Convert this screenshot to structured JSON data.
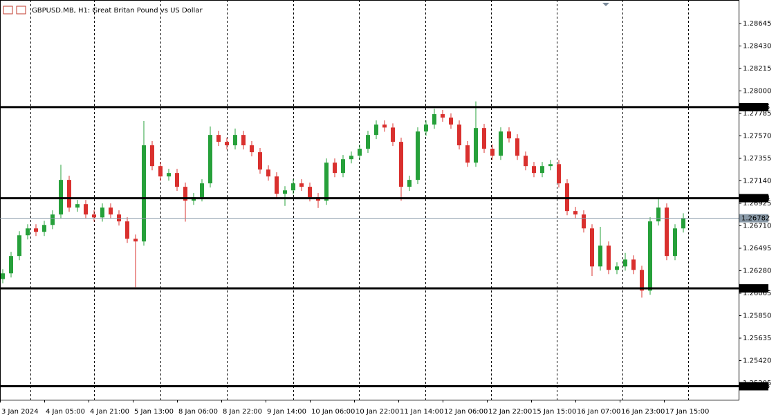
{
  "chart_data": {
    "type": "candlestick",
    "title": "GBPUSD.MB, H1:  Great Britan Pound vs US Dollar",
    "bull_color": "#26a03a",
    "bear_color": "#d9302e",
    "x": [
      1,
      4,
      7,
      10,
      13,
      16,
      19,
      22,
      25,
      28,
      31,
      34,
      37,
      40,
      43,
      46,
      49,
      52,
      55,
      58,
      61,
      64,
      67,
      70,
      73,
      76,
      79,
      82,
      85,
      88,
      91,
      94,
      97,
      100,
      103,
      106,
      109,
      112,
      115,
      118,
      121,
      124,
      127,
      130,
      133,
      136,
      139,
      142,
      145,
      148,
      151,
      154,
      157,
      160,
      163,
      166,
      169,
      172,
      175,
      178,
      181,
      184,
      187,
      190,
      193,
      196,
      199,
      202,
      205,
      208,
      211,
      214,
      217,
      220,
      223,
      226,
      229,
      232,
      235,
      238,
      241,
      244,
      247
    ],
    "open": [
      1.262,
      1.26255,
      1.26421,
      1.26619,
      1.26685,
      1.26652,
      1.26718,
      1.26818,
      1.27149,
      1.26884,
      1.26917,
      1.26818,
      1.2679,
      1.26884,
      1.26818,
      1.26752,
      1.26586,
      1.2656,
      1.2748,
      1.27281,
      1.27182,
      1.27215,
      1.27083,
      1.2695,
      1.26983,
      1.27116,
      1.27579,
      1.27513,
      1.2748,
      1.27579,
      1.2748,
      1.27414,
      1.27248,
      1.27182,
      1.27016,
      1.27049,
      1.27116,
      1.27083,
      1.26983,
      1.2695,
      1.27314,
      1.27215,
      1.27347,
      1.2738,
      1.27447,
      1.27579,
      1.27678,
      1.2765,
      1.27513,
      1.27083,
      1.27149,
      1.27612,
      1.27678,
      1.27778,
      1.27745,
      1.27678,
      1.2748,
      1.27314,
      1.27645,
      1.27447,
      1.2738,
      1.27612,
      1.27546,
      1.2738,
      1.27281,
      1.27215,
      1.27281,
      1.273,
      1.27116,
      1.26851,
      1.26818,
      1.26685,
      1.26321,
      1.2652,
      1.26288,
      1.26321,
      1.26387,
      1.26288,
      1.2609,
      1.26752,
      1.26884,
      1.26421,
      1.26685
    ],
    "high": [
      1.26295,
      1.26461,
      1.26659,
      1.26725,
      1.26725,
      1.26758,
      1.26858,
      1.27294,
      1.27189,
      1.26957,
      1.26957,
      1.26858,
      1.26924,
      1.26924,
      1.26858,
      1.26792,
      1.26626,
      1.27712,
      1.2752,
      1.27321,
      1.27255,
      1.27255,
      1.27123,
      1.27023,
      1.27156,
      1.2766,
      1.27619,
      1.27553,
      1.2764,
      1.27619,
      1.2752,
      1.27454,
      1.27288,
      1.27222,
      1.27089,
      1.27156,
      1.27156,
      1.27123,
      1.27023,
      1.27354,
      1.27354,
      1.27387,
      1.2742,
      1.27487,
      1.27619,
      1.27718,
      1.27718,
      1.2769,
      1.27553,
      1.27189,
      1.27652,
      1.27718,
      1.2783,
      1.27818,
      1.27785,
      1.27718,
      1.2752,
      1.279,
      1.27685,
      1.27487,
      1.27652,
      1.27652,
      1.27586,
      1.2742,
      1.27321,
      1.27321,
      1.2734,
      1.2734,
      1.27156,
      1.26891,
      1.26858,
      1.26725,
      1.267,
      1.2656,
      1.26361,
      1.2645,
      1.26427,
      1.26328,
      1.26792,
      1.26974,
      1.26924,
      1.26725,
      1.2683
    ],
    "low": [
      1.2616,
      1.26215,
      1.26381,
      1.26579,
      1.26612,
      1.26612,
      1.26678,
      1.26778,
      1.26844,
      1.26844,
      1.26778,
      1.2675,
      1.2675,
      1.26778,
      1.26712,
      1.26546,
      1.26123,
      1.2652,
      1.27241,
      1.27142,
      1.27142,
      1.27043,
      1.2675,
      1.2691,
      1.26943,
      1.27076,
      1.27473,
      1.2744,
      1.2744,
      1.2744,
      1.27374,
      1.27208,
      1.27142,
      1.26976,
      1.269,
      1.27009,
      1.27043,
      1.26943,
      1.2688,
      1.2691,
      1.27175,
      1.27175,
      1.27307,
      1.2734,
      1.27407,
      1.27539,
      1.2761,
      1.27473,
      1.2695,
      1.27043,
      1.27109,
      1.27572,
      1.27638,
      1.27705,
      1.27638,
      1.2744,
      1.27274,
      1.27274,
      1.27407,
      1.2734,
      1.2734,
      1.27506,
      1.2734,
      1.27241,
      1.27175,
      1.27175,
      1.27241,
      1.27076,
      1.26811,
      1.26778,
      1.26645,
      1.2623,
      1.26281,
      1.26248,
      1.26248,
      1.26281,
      1.26248,
      1.26023,
      1.2605,
      1.26712,
      1.26381,
      1.26381,
      1.26645
    ],
    "close": [
      1.26255,
      1.26421,
      1.26619,
      1.26685,
      1.26652,
      1.26718,
      1.26818,
      1.27149,
      1.26884,
      1.26917,
      1.26818,
      1.2679,
      1.26884,
      1.26818,
      1.26752,
      1.26586,
      1.2656,
      1.2748,
      1.27281,
      1.27182,
      1.27215,
      1.27083,
      1.2695,
      1.26983,
      1.27116,
      1.27579,
      1.27513,
      1.2748,
      1.27579,
      1.2748,
      1.27414,
      1.27248,
      1.27182,
      1.27016,
      1.27049,
      1.27116,
      1.27083,
      1.26983,
      1.2695,
      1.27314,
      1.27215,
      1.27347,
      1.2738,
      1.27447,
      1.27579,
      1.27678,
      1.2765,
      1.27513,
      1.27083,
      1.27149,
      1.27612,
      1.27678,
      1.27778,
      1.27745,
      1.27678,
      1.2748,
      1.27314,
      1.27645,
      1.27447,
      1.2738,
      1.27612,
      1.27546,
      1.2738,
      1.27281,
      1.27215,
      1.27281,
      1.273,
      1.27116,
      1.26851,
      1.26818,
      1.26685,
      1.26321,
      1.2652,
      1.26288,
      1.26321,
      1.26387,
      1.26288,
      1.2609,
      1.26752,
      1.26884,
      1.26421,
      1.26685,
      1.26782
    ],
    "xlim": [
      0,
      267
    ],
    "xticks": [
      {
        "value": 0,
        "label": "3 Jan 2024"
      },
      {
        "value": 16,
        "label": "4 Jan 05:00"
      },
      {
        "value": 32,
        "label": "4 Jan 21:00"
      },
      {
        "value": 48,
        "label": "5 Jan 13:00"
      },
      {
        "value": 64,
        "label": "8 Jan 06:00"
      },
      {
        "value": 80,
        "label": "8 Jan 22:00"
      },
      {
        "value": 96,
        "label": "9 Jan 14:00"
      },
      {
        "value": 112,
        "label": "10 Jan 06:00"
      },
      {
        "value": 128,
        "label": "10 Jan 22:00"
      },
      {
        "value": 144,
        "label": "11 Jan 14:00"
      },
      {
        "value": 160,
        "label": "12 Jan 06:00"
      },
      {
        "value": 176,
        "label": "12 Jan 22:00"
      },
      {
        "value": 192,
        "label": "15 Jan 15:00"
      },
      {
        "value": 208,
        "label": "16 Jan 07:00"
      },
      {
        "value": 224,
        "label": "16 Jan 23:00"
      },
      {
        "value": 240,
        "label": "17 Jan 15:00"
      }
    ],
    "ylim": [
      1.25046,
      1.2887
    ],
    "yticks": [
      1.28645,
      {
        "value": 1.2843,
        "label": "1.28430"
      },
      1.28215,
      {
        "value": 1.28,
        "label": "1.28000"
      },
      1.27785,
      {
        "value": 1.2757,
        "label": "1.27570"
      },
      1.27355,
      {
        "value": 1.2714,
        "label": "1.27140"
      },
      1.26925,
      {
        "value": 1.2671,
        "label": "1.26710"
      },
      1.26495,
      {
        "value": 1.2628,
        "label": "1.26280"
      },
      1.26065,
      {
        "value": 1.2585,
        "label": "1.25850"
      },
      1.25635,
      {
        "value": 1.2542,
        "label": "1.25420"
      },
      1.25205
    ],
    "levels": [
      1.27845,
      1.26974,
      1.26111,
      1.25175
    ],
    "last_price": 1.26782
  }
}
